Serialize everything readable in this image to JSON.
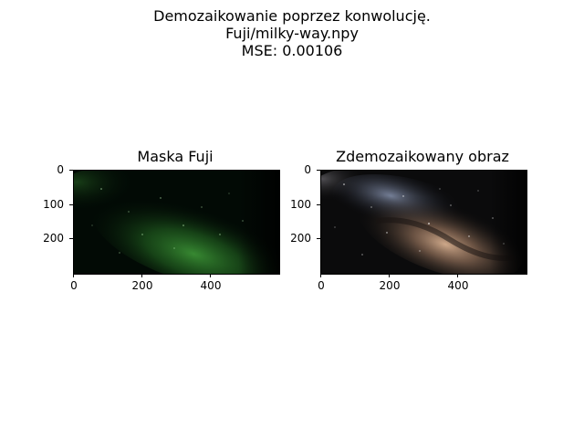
{
  "figure": {
    "title_lines": [
      "Demozaikowanie poprzez konwolucję.",
      "Fuji/milky-way.npy",
      "MSE: 0.00106"
    ]
  },
  "panels": [
    {
      "title": "Maska Fuji",
      "image": "fuji-mask-milky-way",
      "palette": {
        "bg": "#020805",
        "glow": "#2f7a2a",
        "stars": "#b9ffb0"
      },
      "yticks": [
        "0",
        "100",
        "200"
      ],
      "xticks": [
        "0",
        "200",
        "400"
      ]
    },
    {
      "title": "Zdemozaikowany obraz",
      "image": "demosaiced-milky-way",
      "palette": {
        "bg": "#070808",
        "glow": "#a88a70",
        "cool": "#8aa0c8",
        "stars": "#ffffff"
      },
      "yticks": [
        "0",
        "100",
        "200"
      ],
      "xticks": [
        "0",
        "200",
        "400"
      ]
    }
  ]
}
